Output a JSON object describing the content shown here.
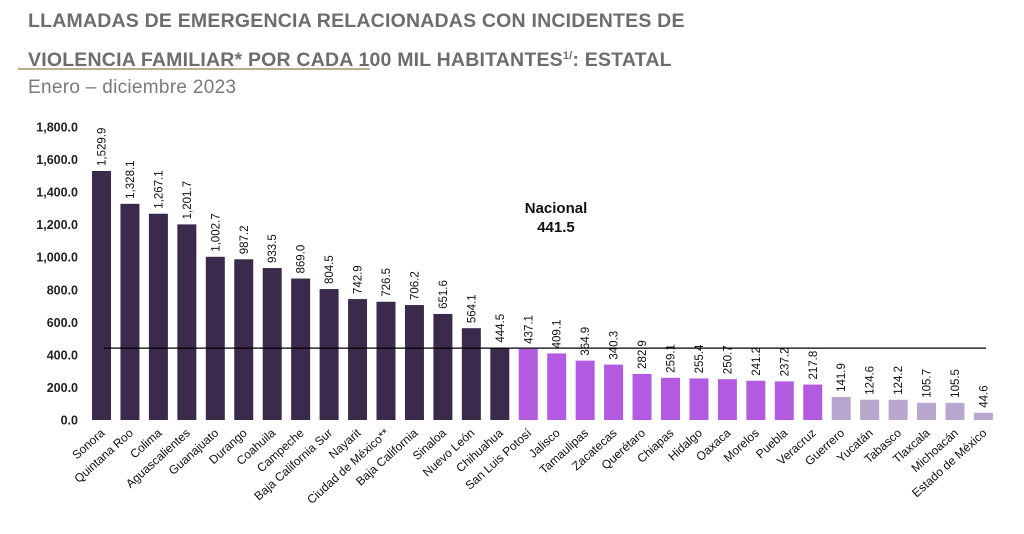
{
  "header": {
    "title_line1": "LLAMADAS DE EMERGENCIA RELACIONADAS CON INCIDENTES DE",
    "title_line2": "VIOLENCIA FAMILIAR* POR CADA 100 MIL HABITANTES",
    "title_sup": "1/",
    "title_line2_suffix": ": ESTATAL",
    "subtitle": "Enero – diciembre 2023"
  },
  "colors": {
    "above": "#3b2a4c",
    "middle": "#b25ae0",
    "low": "#b9a6cf",
    "reference_line": "#000000"
  },
  "chart_data": {
    "type": "bar",
    "categories": [
      "Sonora",
      "Quintana Roo",
      "Colima",
      "Aguascalientes",
      "Guanajuato",
      "Durango",
      "Coahuila",
      "Campeche",
      "Baja California Sur",
      "Nayarit",
      "Ciudad de México**",
      "Baja California",
      "Sinaloa",
      "Nuevo León",
      "Chihuahua",
      "San Luis Potosí",
      "Jalisco",
      "Tamaulipas",
      "Zacatecas",
      "Querétaro",
      "Chiapas",
      "Hidalgo",
      "Oaxaca",
      "Morelos",
      "Puebla",
      "Veracruz",
      "Guerrero",
      "Yucatán",
      "Tabasco",
      "Tlaxcala",
      "Michoacán",
      "Estado de México"
    ],
    "values": [
      1529.9,
      1328.1,
      1267.1,
      1201.7,
      1002.7,
      987.2,
      933.5,
      869.0,
      804.5,
      742.9,
      726.5,
      706.2,
      651.6,
      564.1,
      444.5,
      437.1,
      409.1,
      364.9,
      340.3,
      282.9,
      259.1,
      255.4,
      250.7,
      241.2,
      237.2,
      217.8,
      141.9,
      124.6,
      124.2,
      105.7,
      105.5,
      44.6
    ],
    "value_labels": [
      "1,529.9",
      "1,328.1",
      "1,267.1",
      "1,201.7",
      "1,002.7",
      "987.2",
      "933.5",
      "869.0",
      "804.5",
      "742.9",
      "726.5",
      "706.2",
      "651.6",
      "564.1",
      "444.5",
      "437.1",
      "409.1",
      "364.9",
      "340.3",
      "282.9",
      "259.1",
      "255.4",
      "250.7",
      "241.2",
      "237.2",
      "217.8",
      "141.9",
      "124.6",
      "124.2",
      "105.7",
      "105.5",
      "44.6"
    ],
    "color_groups": [
      "above",
      "above",
      "above",
      "above",
      "above",
      "above",
      "above",
      "above",
      "above",
      "above",
      "above",
      "above",
      "above",
      "above",
      "above",
      "middle",
      "middle",
      "middle",
      "middle",
      "middle",
      "middle",
      "middle",
      "middle",
      "middle",
      "middle",
      "middle",
      "low",
      "low",
      "low",
      "low",
      "low",
      "low"
    ],
    "ylim": [
      0,
      1800
    ],
    "yticks": [
      0,
      200,
      400,
      600,
      800,
      1000,
      1200,
      1400,
      1600,
      1800
    ],
    "ytick_labels": [
      "0.0",
      "200.0",
      "400.0",
      "600.0",
      "800.0",
      "1,000.0",
      "1,200.0",
      "1,400.0",
      "1,600.0",
      "1,800.0"
    ],
    "reference": {
      "label": "Nacional",
      "value": 441.5,
      "value_label": "441.5"
    },
    "grid": false,
    "legend": "none"
  }
}
